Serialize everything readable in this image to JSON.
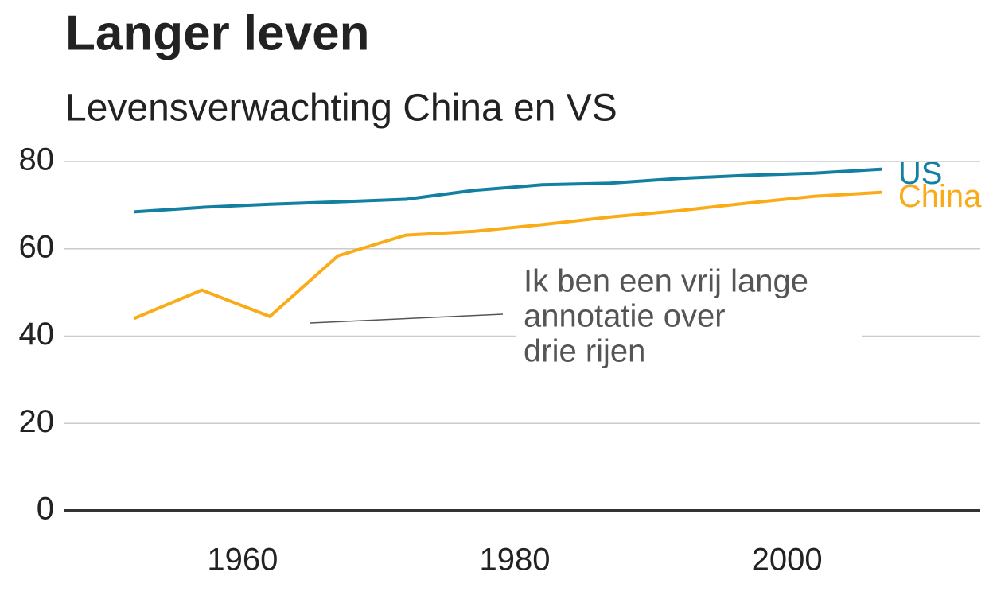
{
  "chart_data": {
    "type": "line",
    "title": "Langer leven",
    "subtitle": "Levensverwachting China en VS",
    "x": [
      1952,
      1957,
      1962,
      1967,
      1972,
      1977,
      1982,
      1987,
      1992,
      1997,
      2002,
      2007
    ],
    "series": [
      {
        "name": "US",
        "color": "#1380A1",
        "values": [
          68.44,
          69.49,
          70.21,
          70.76,
          71.34,
          73.38,
          74.65,
          75.02,
          76.09,
          76.81,
          77.31,
          78.24
        ]
      },
      {
        "name": "China",
        "color": "#FAAB18",
        "values": [
          44.0,
          50.55,
          44.5,
          58.38,
          63.12,
          63.97,
          65.53,
          67.27,
          68.69,
          70.43,
          72.03,
          72.96
        ]
      }
    ],
    "xlim": [
      1946.85,
      2014.2
    ],
    "ylim": [
      0,
      82
    ],
    "xticks": [
      1960,
      1980,
      2000
    ],
    "yticks": [
      0,
      20,
      40,
      60,
      80
    ],
    "grid": true,
    "annotation": {
      "lines": [
        "Ik ben een vrij lange",
        "annotatie over",
        "drie rijen"
      ]
    }
  }
}
